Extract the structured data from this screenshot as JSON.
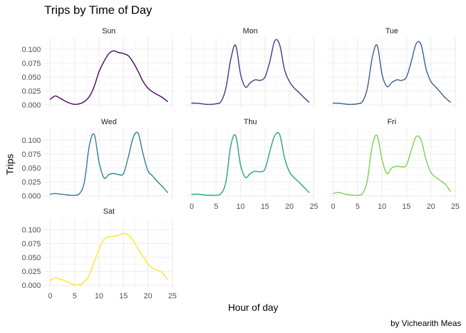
{
  "chart_data": {
    "type": "line",
    "title": "Trips by Time of Day",
    "xlabel": "Hour of day",
    "ylabel": "Trips",
    "caption": "by Vichearith Meas",
    "xlim": [
      0,
      24
    ],
    "ylim": [
      0,
      0.12
    ],
    "x_ticks": [
      0,
      5,
      10,
      15,
      20,
      25
    ],
    "y_ticks": [
      "0.000",
      "0.025",
      "0.050",
      "0.075",
      "0.100"
    ],
    "grid": true,
    "x": [
      0,
      1,
      2,
      3,
      4,
      5,
      6,
      7,
      8,
      9,
      10,
      11,
      12,
      13,
      14,
      15,
      16,
      17,
      18,
      19,
      20,
      21,
      22,
      23,
      24
    ],
    "series": [
      {
        "name": "Sun",
        "color": "#440154",
        "values": [
          0.01,
          0.016,
          0.012,
          0.007,
          0.003,
          0.001,
          0.002,
          0.006,
          0.015,
          0.033,
          0.06,
          0.078,
          0.092,
          0.097,
          0.094,
          0.092,
          0.088,
          0.076,
          0.06,
          0.042,
          0.03,
          0.023,
          0.018,
          0.013,
          0.006
        ]
      },
      {
        "name": "Mon",
        "color": "#46327e",
        "values": [
          0.003,
          0.003,
          0.002,
          0.001,
          0.001,
          0.002,
          0.006,
          0.03,
          0.082,
          0.107,
          0.055,
          0.032,
          0.04,
          0.045,
          0.044,
          0.05,
          0.078,
          0.115,
          0.108,
          0.063,
          0.042,
          0.03,
          0.022,
          0.013,
          0.005
        ]
      },
      {
        "name": "Tue",
        "color": "#365c8d",
        "values": [
          0.003,
          0.003,
          0.002,
          0.001,
          0.001,
          0.002,
          0.006,
          0.03,
          0.085,
          0.107,
          0.055,
          0.033,
          0.04,
          0.045,
          0.044,
          0.05,
          0.078,
          0.11,
          0.108,
          0.065,
          0.042,
          0.032,
          0.022,
          0.012,
          0.005
        ]
      },
      {
        "name": "Wed",
        "color": "#277f8e",
        "values": [
          0.003,
          0.004,
          0.003,
          0.002,
          0.001,
          0.001,
          0.004,
          0.025,
          0.09,
          0.11,
          0.06,
          0.032,
          0.038,
          0.04,
          0.038,
          0.04,
          0.07,
          0.105,
          0.112,
          0.075,
          0.045,
          0.035,
          0.025,
          0.016,
          0.006
        ]
      },
      {
        "name": "Thu",
        "color": "#1fa187",
        "values": [
          0.002,
          0.003,
          0.002,
          0.001,
          0.001,
          0.001,
          0.004,
          0.025,
          0.09,
          0.108,
          0.055,
          0.033,
          0.04,
          0.044,
          0.043,
          0.048,
          0.08,
          0.108,
          0.11,
          0.068,
          0.043,
          0.032,
          0.024,
          0.015,
          0.006
        ]
      },
      {
        "name": "Fri",
        "color": "#7ad151",
        "values": [
          0.004,
          0.006,
          0.004,
          0.002,
          0.001,
          0.001,
          0.004,
          0.028,
          0.09,
          0.108,
          0.065,
          0.04,
          0.05,
          0.053,
          0.052,
          0.055,
          0.082,
          0.106,
          0.1,
          0.065,
          0.042,
          0.033,
          0.027,
          0.02,
          0.008
        ]
      },
      {
        "name": "Sat",
        "color": "#fde725",
        "values": [
          0.008,
          0.013,
          0.011,
          0.008,
          0.004,
          0.001,
          0.001,
          0.006,
          0.018,
          0.042,
          0.065,
          0.082,
          0.087,
          0.088,
          0.09,
          0.093,
          0.09,
          0.08,
          0.065,
          0.052,
          0.038,
          0.03,
          0.027,
          0.022,
          0.01
        ]
      }
    ]
  }
}
